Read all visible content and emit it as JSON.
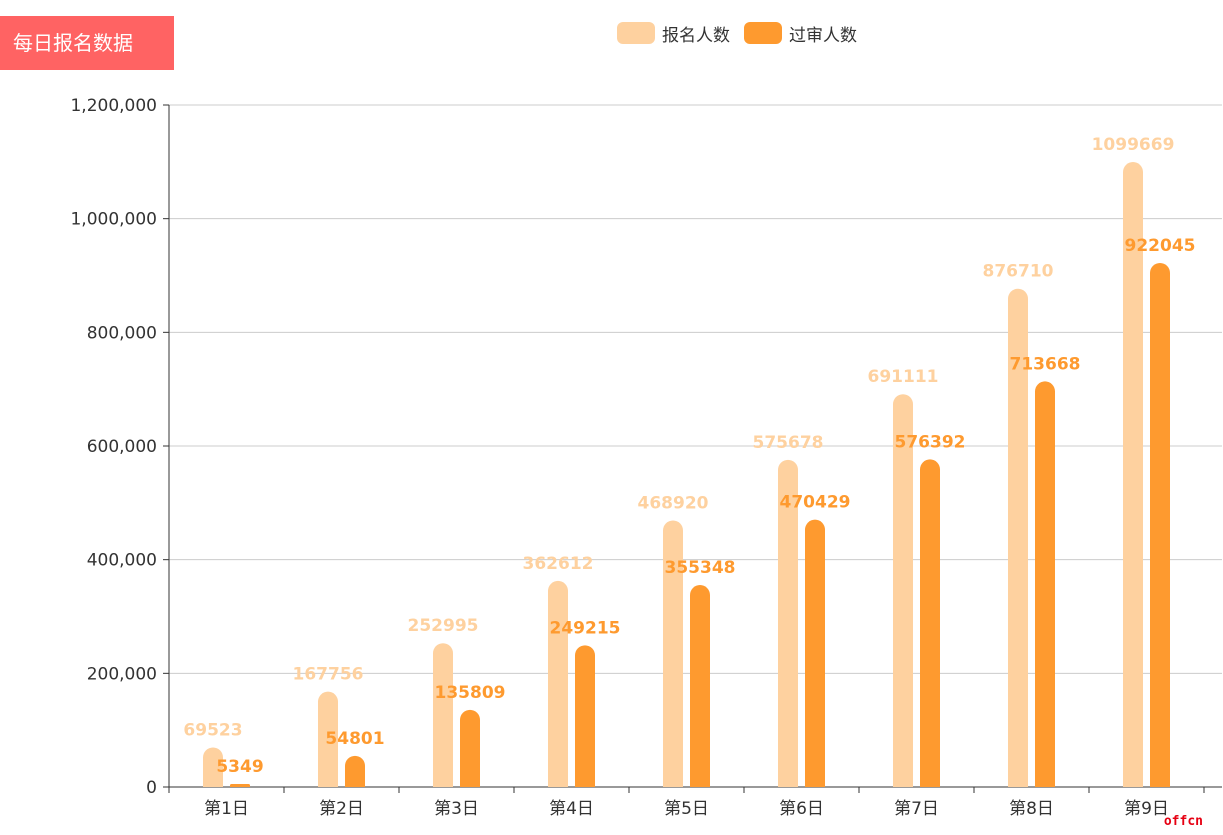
{
  "title": "每日报名数据",
  "colors": {
    "title_bg": "#ff6363",
    "series1": "#fed19f",
    "series2": "#fe9a2f",
    "grid": "#cccccc",
    "axis": "#333333"
  },
  "chart_data": {
    "type": "bar",
    "categories": [
      "第1日",
      "第2日",
      "第3日",
      "第4日",
      "第5日",
      "第6日",
      "第7日",
      "第8日",
      "第9日"
    ],
    "series": [
      {
        "name": "报名人数",
        "values": [
          69523,
          167756,
          252995,
          362612,
          468920,
          575678,
          691111,
          876710,
          1099669
        ]
      },
      {
        "name": "过审人数",
        "values": [
          5349,
          54801,
          135809,
          249215,
          355348,
          470429,
          576392,
          713668,
          922045
        ]
      }
    ],
    "yticks": [
      "0",
      "200,000",
      "400,000",
      "600,000",
      "800,000",
      "1,000,000",
      "1,200,000"
    ],
    "ylim": [
      0,
      1200000
    ],
    "grid": true,
    "legend_position": "top-center"
  },
  "watermark": "offcn"
}
